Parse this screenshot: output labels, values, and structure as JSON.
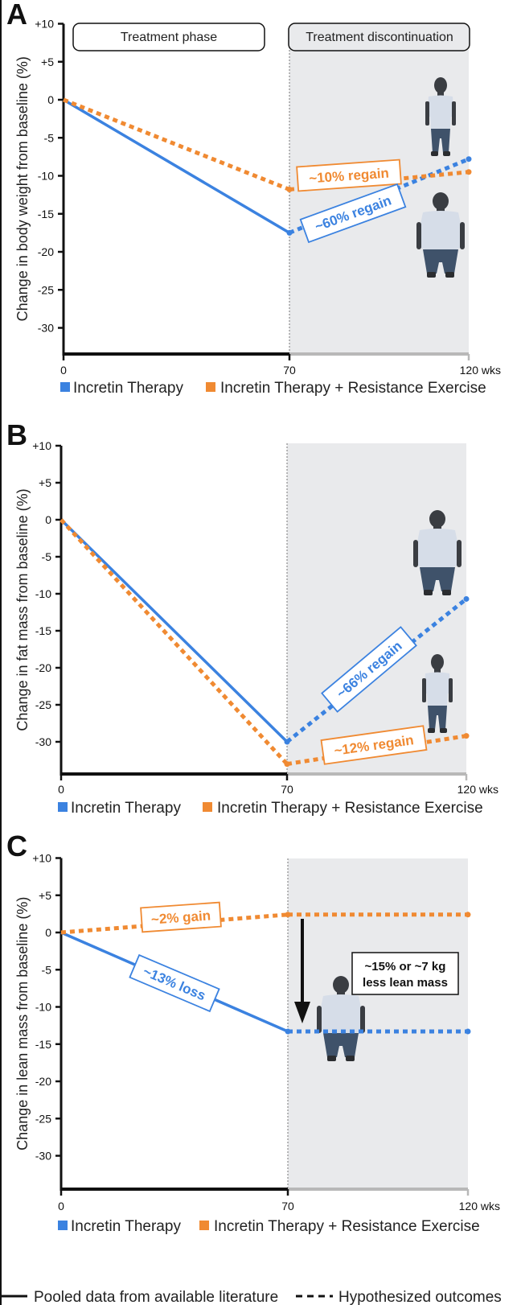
{
  "colors": {
    "incretin": "#3b82e0",
    "incretin_exercise": "#f08a32",
    "discontinuation_bg": "#e9eaec",
    "axis": "#111111",
    "axis_gray": "#b8b8b8"
  },
  "phase_labels": {
    "treatment": "Treatment phase",
    "discontinuation": "Treatment discontinuation"
  },
  "legend": {
    "incretin": "Incretin Therapy",
    "incretin_exercise": "Incretin Therapy + Resistance Exercise",
    "solid": "Pooled data from available literature",
    "dashed": "Hypothesized outcomes"
  },
  "chart_data": [
    {
      "panel": "A",
      "type": "line",
      "ylabel": "Change in body weight from baseline (%)",
      "xlabel": "wks",
      "x_ticks": [
        "0",
        "70",
        "120 wks"
      ],
      "x": [
        0,
        70,
        120
      ],
      "xlim": [
        0,
        120
      ],
      "ylim": [
        -35,
        10
      ],
      "y_ticks": [
        "+10",
        "+5",
        "0",
        "-5",
        "-10",
        "-15",
        "-20",
        "-25",
        "-30"
      ],
      "y_tick_values": [
        10,
        5,
        0,
        -5,
        -10,
        -15,
        -20,
        -25,
        -30
      ],
      "series": [
        {
          "name": "Incretin Therapy",
          "values": [
            0,
            -17.5,
            -7.8
          ],
          "style": [
            "solid",
            "dashed"
          ]
        },
        {
          "name": "Incretin Therapy + Resistance Exercise",
          "values": [
            0,
            -11.8,
            -9.5
          ],
          "style": [
            "dashed",
            "dashed"
          ]
        }
      ],
      "annotations": [
        {
          "text": "~10% regain",
          "series": 1
        },
        {
          "text": "~60% regain",
          "series": 0
        }
      ]
    },
    {
      "panel": "B",
      "type": "line",
      "ylabel": "Change in fat mass from baseline (%)",
      "xlabel": "wks",
      "x_ticks": [
        "0",
        "70",
        "120 wks"
      ],
      "x": [
        0,
        70,
        120
      ],
      "xlim": [
        0,
        120
      ],
      "ylim": [
        -34,
        10
      ],
      "y_ticks": [
        "+10",
        "+5",
        "0",
        "-5",
        "-10",
        "-15",
        "-20",
        "-25",
        "-30"
      ],
      "y_tick_values": [
        10,
        5,
        0,
        -5,
        -10,
        -15,
        -20,
        -25,
        -30
      ],
      "series": [
        {
          "name": "Incretin Therapy",
          "values": [
            0,
            -30,
            -10.7
          ],
          "style": [
            "solid",
            "dashed"
          ]
        },
        {
          "name": "Incretin Therapy + Resistance Exercise",
          "values": [
            0,
            -33,
            -29.2
          ],
          "style": [
            "dashed",
            "dashed"
          ]
        }
      ],
      "annotations": [
        {
          "text": "~66% regain",
          "series": 0
        },
        {
          "text": "~12% regain",
          "series": 1
        }
      ]
    },
    {
      "panel": "C",
      "type": "line",
      "ylabel": "Change in lean mass from baseline (%)",
      "xlabel": "wks",
      "x_ticks": [
        "0",
        "70",
        "120 wks"
      ],
      "x": [
        0,
        70,
        120
      ],
      "xlim": [
        0,
        120
      ],
      "ylim": [
        -34,
        10
      ],
      "y_ticks": [
        "+10",
        "+5",
        "0",
        "-5",
        "-10",
        "-15",
        "-20",
        "-25",
        "-30"
      ],
      "y_tick_values": [
        10,
        5,
        0,
        -5,
        -10,
        -15,
        -20,
        -25,
        -30
      ],
      "series": [
        {
          "name": "Incretin Therapy",
          "values": [
            0,
            -13.3,
            -13.3
          ],
          "style": [
            "solid",
            "dashed"
          ]
        },
        {
          "name": "Incretin Therapy + Resistance Exercise",
          "values": [
            0,
            2.4,
            2.4
          ],
          "style": [
            "dashed",
            "dashed"
          ]
        }
      ],
      "annotations": [
        {
          "text": "~2% gain",
          "series": 1
        },
        {
          "text": "~13% loss",
          "series": 0
        }
      ],
      "note": [
        "~15% or ~7 kg",
        "less lean mass"
      ]
    }
  ]
}
